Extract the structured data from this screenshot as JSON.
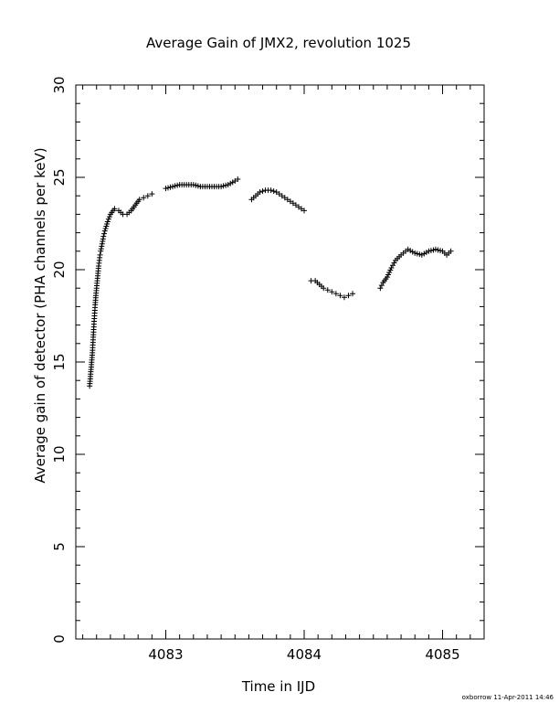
{
  "footer": {
    "credit": "oxborrow 11-Apr-2011 14:46"
  },
  "chart_data": {
    "type": "scatter",
    "title": "Average Gain of JMX2, revolution 1025",
    "xlabel": "Time in IJD",
    "ylabel": "Average gain of detector (PHA channels per keV)",
    "xlim": [
      4082.35,
      4085.3
    ],
    "ylim": [
      0,
      30
    ],
    "xticks": [
      4083,
      4084,
      4085
    ],
    "xtick_labels": [
      "4083",
      "4084",
      "4085"
    ],
    "yticks": [
      0,
      5,
      10,
      15,
      20,
      25,
      30
    ],
    "ytick_labels": [
      "0",
      "5",
      "10",
      "15",
      "20",
      "25",
      "30"
    ],
    "grid": false,
    "marker": "plus",
    "marker_color": "#000000",
    "series": [
      {
        "x": [
          4082.45,
          4082.47,
          4082.475,
          4082.48,
          4082.485,
          4082.49,
          4082.495,
          4082.5,
          4082.505,
          4082.51,
          4082.515,
          4082.52,
          4082.525,
          4082.53,
          4082.54,
          4082.55,
          4082.56,
          4082.58,
          4082.6,
          4082.63,
          4082.66,
          4082.69,
          4082.72,
          4082.75,
          4082.78,
          4082.81,
          4082.84,
          4082.87,
          4082.9
        ],
        "y": [
          13.7,
          15.5,
          16.2,
          16.9,
          17.5,
          18.1,
          18.6,
          19.0,
          19.4,
          19.8,
          20.2,
          20.5,
          20.8,
          21.0,
          21.4,
          21.8,
          22.1,
          22.6,
          23.0,
          23.3,
          23.2,
          23.0,
          23.0,
          23.2,
          23.5,
          23.8,
          23.9,
          24.0,
          24.1
        ]
      },
      {
        "x": [
          4083.0,
          4083.05,
          4083.1,
          4083.15,
          4083.2,
          4083.25,
          4083.3,
          4083.35,
          4083.4,
          4083.45,
          4083.5,
          4083.52
        ],
        "y": [
          24.4,
          24.5,
          24.6,
          24.6,
          24.6,
          24.5,
          24.5,
          24.5,
          24.5,
          24.6,
          24.8,
          24.9
        ]
      },
      {
        "x": [
          4083.62,
          4083.65,
          4083.68,
          4083.72,
          4083.76,
          4083.8,
          4083.84,
          4083.88,
          4083.92,
          4083.96,
          4084.0
        ],
        "y": [
          23.8,
          24.0,
          24.2,
          24.3,
          24.3,
          24.2,
          24.0,
          23.8,
          23.6,
          23.4,
          23.2
        ]
      },
      {
        "x": [
          4084.05,
          4084.08,
          4084.11,
          4084.14,
          4084.17,
          4084.2,
          4084.23,
          4084.26,
          4084.29,
          4084.32,
          4084.35
        ],
        "y": [
          19.4,
          19.4,
          19.2,
          19.0,
          18.9,
          18.8,
          18.7,
          18.6,
          18.5,
          18.6,
          18.7
        ]
      },
      {
        "x": [
          4084.55,
          4084.57,
          4084.6,
          4084.63,
          4084.66,
          4084.7,
          4084.75,
          4084.8,
          4084.85,
          4084.9,
          4084.95,
          4085.0,
          4085.03,
          4085.06
        ],
        "y": [
          19.0,
          19.3,
          19.6,
          20.1,
          20.5,
          20.8,
          21.1,
          20.9,
          20.8,
          21.0,
          21.1,
          21.0,
          20.8,
          21.0
        ]
      }
    ]
  }
}
